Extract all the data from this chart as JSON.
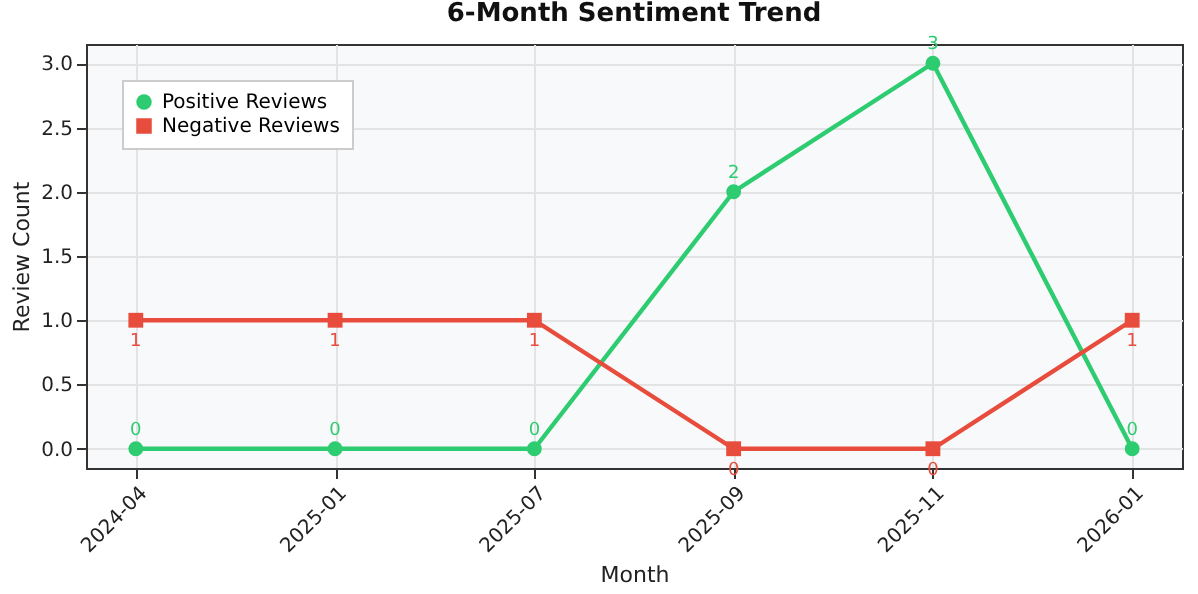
{
  "chart_data": {
    "type": "line",
    "title": "6-Month Sentiment Trend",
    "xlabel": "Month",
    "ylabel": "Review Count",
    "categories": [
      "2024-04",
      "2025-01",
      "2025-07",
      "2025-09",
      "2025-11",
      "2026-01"
    ],
    "series": [
      {
        "name": "Positive Reviews",
        "color": "#2ecc71",
        "marker": "circle",
        "values": [
          0,
          0,
          0,
          2,
          3,
          0
        ]
      },
      {
        "name": "Negative Reviews",
        "color": "#e74c3c",
        "marker": "square",
        "values": [
          1,
          1,
          1,
          0,
          0,
          1
        ]
      }
    ],
    "ylim": [
      -0.15,
      3.15
    ],
    "yticks": [
      {
        "value": 0,
        "label": "0.0"
      },
      {
        "value": 0.5,
        "label": "0.5"
      },
      {
        "value": 1,
        "label": "1.0"
      },
      {
        "value": 1.5,
        "label": "1.5"
      },
      {
        "value": 2,
        "label": "2.0"
      },
      {
        "value": 2.5,
        "label": "2.5"
      },
      {
        "value": 3,
        "label": "3.0"
      }
    ],
    "grid": true,
    "legend": "top left",
    "data_labels": true,
    "line_style": "solid"
  }
}
